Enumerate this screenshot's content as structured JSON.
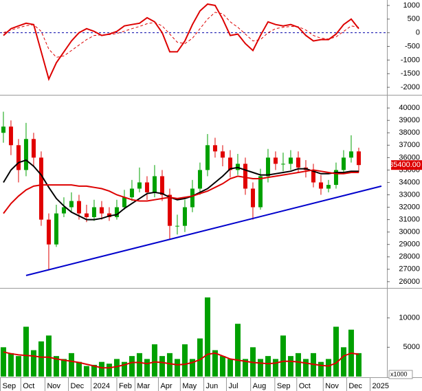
{
  "chart_data": [
    {
      "type": "line",
      "xlim": [
        -0.45,
        50.73
      ],
      "ylim": [
        -2200,
        1200
      ],
      "yticks": [
        1000,
        500,
        0,
        -500,
        -1000,
        -1500,
        -2000
      ],
      "zero_line_color": "#0000aa",
      "series": [
        {
          "color": "#dd0000",
          "dash": false,
          "values": [
            -100,
            150,
            250,
            350,
            300,
            -700,
            -1700,
            -1100,
            -700,
            -300,
            0,
            150,
            50,
            -100,
            -50,
            50,
            250,
            300,
            350,
            550,
            400,
            0,
            -700,
            -700,
            -300,
            300,
            800,
            1050,
            1000,
            500,
            -100,
            -50,
            -400,
            -650,
            -100,
            400,
            300,
            250,
            300,
            200,
            -100,
            -300,
            -250,
            -250,
            -50,
            300,
            500,
            150
          ]
        },
        {
          "color": "#dd0000",
          "dash": true,
          "values": [
            0,
            100,
            180,
            260,
            290,
            50,
            -600,
            -900,
            -850,
            -650,
            -450,
            -250,
            -100,
            -80,
            -70,
            -30,
            60,
            150,
            230,
            330,
            380,
            250,
            -50,
            -350,
            -400,
            -200,
            150,
            500,
            750,
            700,
            400,
            200,
            -50,
            -300,
            -250,
            0,
            150,
            200,
            230,
            220,
            100,
            -100,
            -200,
            -230,
            -150,
            50,
            250,
            200
          ]
        }
      ]
    },
    {
      "type": "candlestick",
      "xlim": [
        -0.45,
        50.73
      ],
      "ylim": [
        25550,
        40950
      ],
      "yticks": [
        26000,
        27000,
        28000,
        29000,
        30000,
        31000,
        32000,
        33000,
        34000,
        35000,
        36000,
        37000,
        38000,
        39000,
        40000
      ],
      "up_color": "#00a000",
      "down_color": "#e00000",
      "open": [
        38000,
        38500,
        37000,
        35000,
        37500,
        36000,
        31000,
        29000,
        31500,
        32000,
        32500,
        31500,
        31200,
        32000,
        31500,
        31200,
        32000,
        32800,
        33500,
        34000,
        33200,
        34500,
        33000,
        30500,
        30500,
        32000,
        33500,
        35000,
        37000,
        36500,
        36000,
        35000,
        35500,
        33500,
        32000,
        34500,
        36000,
        35500,
        35500,
        36000,
        35200,
        35000,
        34000,
        33500,
        33800,
        35000,
        36000,
        36500
      ],
      "high": [
        39700,
        39000,
        37500,
        38800,
        38000,
        36500,
        31500,
        32200,
        32800,
        33200,
        33000,
        32200,
        32600,
        32500,
        32000,
        32600,
        33400,
        34200,
        35200,
        34500,
        35400,
        35000,
        33500,
        31400,
        32600,
        34200,
        35600,
        37900,
        37600,
        37000,
        36600,
        36300,
        36000,
        34000,
        35100,
        36700,
        36500,
        36400,
        36600,
        36500,
        35800,
        35500,
        34600,
        34200,
        35600,
        36600,
        37800,
        36800
      ],
      "low": [
        37200,
        36200,
        34000,
        34500,
        35300,
        30500,
        26900,
        28800,
        31200,
        31600,
        31000,
        30800,
        30900,
        31000,
        30900,
        31000,
        31800,
        32500,
        33200,
        32600,
        32800,
        32500,
        29400,
        29800,
        30000,
        31600,
        33000,
        34500,
        36000,
        35300,
        34400,
        34600,
        33000,
        31000,
        31800,
        34000,
        35000,
        34900,
        35000,
        34800,
        34400,
        33600,
        33000,
        33200,
        33500,
        34800,
        35600,
        34800
      ],
      "close": [
        38500,
        37000,
        35000,
        37500,
        36000,
        31000,
        29000,
        31500,
        32000,
        32500,
        31500,
        31200,
        32000,
        31500,
        31200,
        32000,
        32800,
        33500,
        34000,
        33200,
        34500,
        33000,
        30500,
        30500,
        32000,
        33500,
        35000,
        37000,
        36500,
        36000,
        35000,
        35500,
        33500,
        32000,
        34500,
        36000,
        35500,
        35500,
        36000,
        35200,
        35000,
        34000,
        33500,
        33800,
        35000,
        36000,
        36500,
        35400
      ],
      "last_label": "35400.00",
      "last_label_color": "#dd0000",
      "series": [
        {
          "color": "#000000",
          "values": [
            34000,
            35000,
            35600,
            35800,
            35300,
            34600,
            33600,
            32700,
            32100,
            31600,
            31300,
            31000,
            31000,
            31100,
            31300,
            31400,
            31900,
            32300,
            32700,
            33100,
            33200,
            33100,
            32800,
            32600,
            32700,
            32900,
            33200,
            33500,
            34000,
            34500,
            35100,
            35200,
            35000,
            34800,
            34600,
            34600,
            34700,
            34800,
            34900,
            35100,
            35100,
            34900,
            34700,
            34700,
            34800,
            34800,
            34900,
            34900
          ]
        },
        {
          "color": "#dd0000",
          "values": [
            31500,
            32300,
            32900,
            33400,
            33700,
            33800,
            33800,
            33800,
            33800,
            33800,
            33700,
            33700,
            33600,
            33500,
            33300,
            33000,
            32800,
            32600,
            32500,
            32500,
            32600,
            32700,
            32800,
            32700,
            32800,
            32900,
            33100,
            33300,
            33600,
            33900,
            34300,
            34500,
            34400,
            34300,
            34300,
            34400,
            34500,
            34600,
            34700,
            34800,
            34900,
            35000,
            34900,
            34800,
            34700,
            34700,
            34800,
            34800
          ]
        }
      ],
      "trendline": {
        "color": "#0000cc",
        "x": [
          3,
          50
        ],
        "values": [
          26500,
          33700
        ]
      }
    },
    {
      "type": "bar",
      "xlim": [
        -0.45,
        50.73
      ],
      "ylim": [
        0,
        15000
      ],
      "yticks": [
        5000,
        10000
      ],
      "unit_label": "x1000",
      "color": "#00a000",
      "values": [
        5000,
        4000,
        3500,
        8500,
        4500,
        6000,
        7000,
        3500,
        3000,
        4000,
        2500,
        1800,
        2000,
        2500,
        2200,
        3000,
        2500,
        3500,
        4000,
        3000,
        5500,
        3500,
        4000,
        3000,
        5500,
        3000,
        6500,
        13500,
        4500,
        3500,
        3000,
        9000,
        3000,
        5000,
        3000,
        3500,
        3000,
        7000,
        3500,
        4000,
        3000,
        4000,
        2500,
        3000,
        8500,
        5000,
        8000,
        4000
      ],
      "series": [
        {
          "color": "#dd0000",
          "values": [
            4200,
            3900,
            3700,
            3600,
            3500,
            3300,
            3300,
            3000,
            2800,
            2600,
            2400,
            2100,
            1800,
            1500,
            1500,
            1700,
            2000,
            2400,
            2400,
            2200,
            2500,
            2400,
            2200,
            2000,
            2100,
            2400,
            2900,
            3800,
            4000,
            3500,
            3000,
            2800,
            2600,
            2400,
            2300,
            2200,
            2300,
            2600,
            2600,
            2500,
            2300,
            2100,
            1900,
            1800,
            2300,
            3500,
            4000,
            3800
          ]
        }
      ],
      "xticks": [
        {
          "value": -0.4,
          "label": "Sep"
        },
        {
          "value": 2.3,
          "label": "Oct"
        },
        {
          "value": 5.5,
          "label": "Nov"
        },
        {
          "value": 8.6,
          "label": "Dec"
        },
        {
          "value": 11.6,
          "label": "2024"
        },
        {
          "value": 15,
          "label": "Feb"
        },
        {
          "value": 17.4,
          "label": "Mar"
        },
        {
          "value": 20.5,
          "label": "Apr"
        },
        {
          "value": 23.4,
          "label": "May"
        },
        {
          "value": 26.5,
          "label": "Jun"
        },
        {
          "value": 29.5,
          "label": "Jul"
        },
        {
          "value": 32.7,
          "label": "Aug"
        },
        {
          "value": 35.9,
          "label": "Sep"
        },
        {
          "value": 38.8,
          "label": "Oct"
        },
        {
          "value": 42.3,
          "label": "Nov"
        },
        {
          "value": 45.4,
          "label": "Dec"
        },
        {
          "value": 48.5,
          "label": "2025"
        }
      ]
    }
  ]
}
